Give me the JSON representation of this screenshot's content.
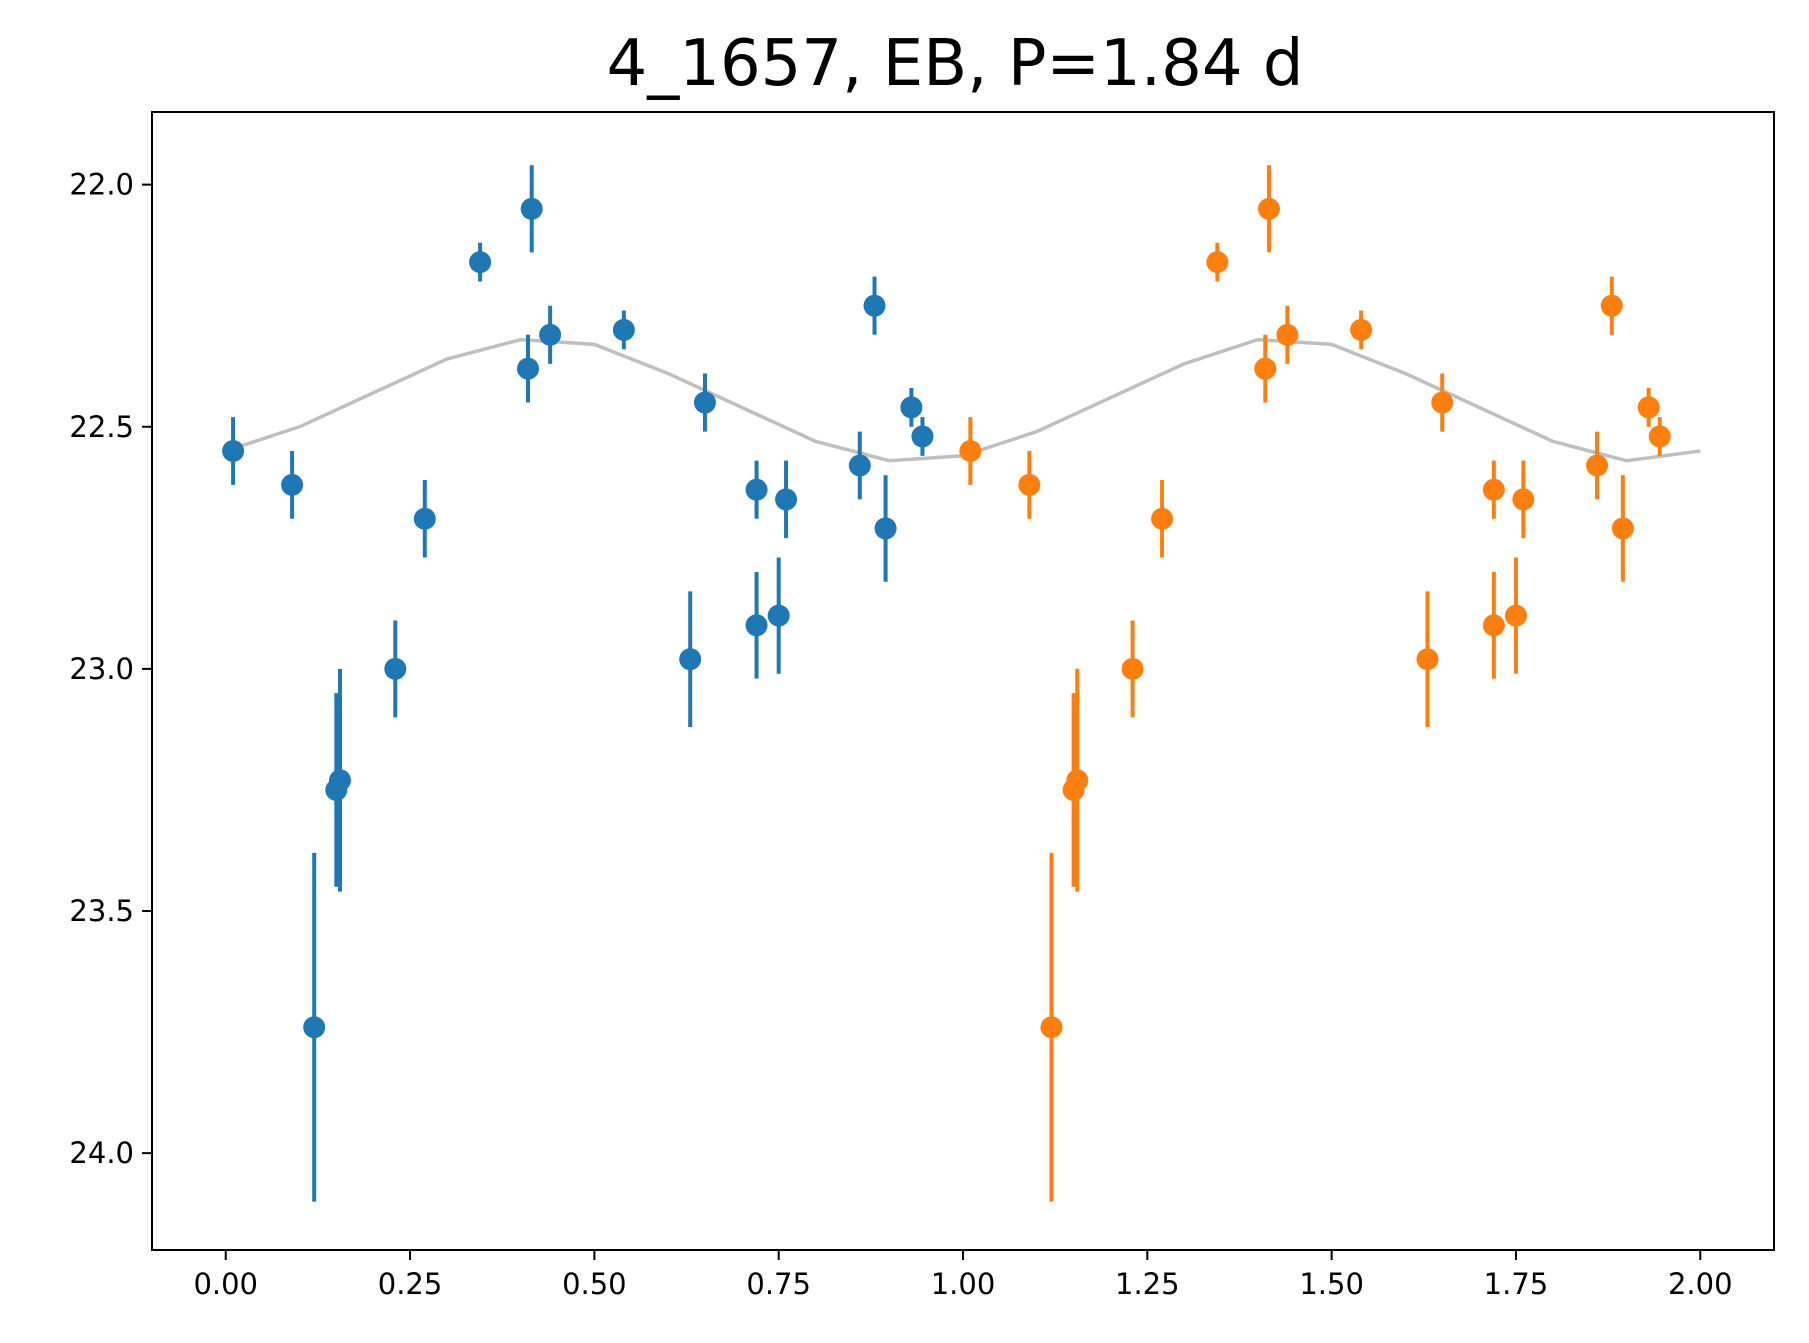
{
  "chart_data": {
    "type": "scatter",
    "title": "4_1657, EB, P=1.84 d",
    "xlabel": "",
    "ylabel": "",
    "xlim": [
      -0.1,
      2.1
    ],
    "ylim": [
      24.2,
      21.85
    ],
    "y_inverted": true,
    "grid": false,
    "xticks": [
      "0.00",
      "0.25",
      "0.50",
      "0.75",
      "1.00",
      "1.25",
      "1.50",
      "1.75",
      "2.00"
    ],
    "yticks": [
      "22.0",
      "22.5",
      "23.0",
      "23.5",
      "24.0"
    ],
    "colors": {
      "phase1": "#1f77b4",
      "phase2": "#ff7f0e",
      "model": "#bfbfbf",
      "axes": "#000000"
    },
    "series": [
      {
        "points": [
          {
            "x": 0.01,
            "y": 22.55,
            "err": 0.07
          },
          {
            "x": 0.09,
            "y": 22.62,
            "err": 0.07
          },
          {
            "x": 0.12,
            "y": 23.74,
            "err": 0.36
          },
          {
            "x": 0.15,
            "y": 23.25,
            "err": 0.2
          },
          {
            "x": 0.155,
            "y": 23.23,
            "err": 0.23
          },
          {
            "x": 0.23,
            "y": 23.0,
            "err": 0.1
          },
          {
            "x": 0.27,
            "y": 22.69,
            "err": 0.08
          },
          {
            "x": 0.345,
            "y": 22.16,
            "err": 0.04
          },
          {
            "x": 0.41,
            "y": 22.38,
            "err": 0.07
          },
          {
            "x": 0.415,
            "y": 22.05,
            "err": 0.09
          },
          {
            "x": 0.44,
            "y": 22.31,
            "err": 0.06
          },
          {
            "x": 0.54,
            "y": 22.3,
            "err": 0.04
          },
          {
            "x": 0.63,
            "y": 22.98,
            "err": 0.14
          },
          {
            "x": 0.65,
            "y": 22.45,
            "err": 0.06
          },
          {
            "x": 0.72,
            "y": 22.91,
            "err": 0.11
          },
          {
            "x": 0.72,
            "y": 22.63,
            "err": 0.06
          },
          {
            "x": 0.75,
            "y": 22.89,
            "err": 0.12
          },
          {
            "x": 0.76,
            "y": 22.65,
            "err": 0.08
          },
          {
            "x": 0.86,
            "y": 22.58,
            "err": 0.07
          },
          {
            "x": 0.88,
            "y": 22.25,
            "err": 0.06
          },
          {
            "x": 0.895,
            "y": 22.71,
            "err": 0.11
          },
          {
            "x": 0.93,
            "y": 22.46,
            "err": 0.04
          },
          {
            "x": 0.945,
            "y": 22.52,
            "err": 0.04
          }
        ]
      },
      {
        "points": [
          {
            "x": 1.01,
            "y": 22.55,
            "err": 0.07
          },
          {
            "x": 1.09,
            "y": 22.62,
            "err": 0.07
          },
          {
            "x": 1.12,
            "y": 23.74,
            "err": 0.36
          },
          {
            "x": 1.15,
            "y": 23.25,
            "err": 0.2
          },
          {
            "x": 1.155,
            "y": 23.23,
            "err": 0.23
          },
          {
            "x": 1.23,
            "y": 23.0,
            "err": 0.1
          },
          {
            "x": 1.27,
            "y": 22.69,
            "err": 0.08
          },
          {
            "x": 1.345,
            "y": 22.16,
            "err": 0.04
          },
          {
            "x": 1.41,
            "y": 22.38,
            "err": 0.07
          },
          {
            "x": 1.415,
            "y": 22.05,
            "err": 0.09
          },
          {
            "x": 1.44,
            "y": 22.31,
            "err": 0.06
          },
          {
            "x": 1.54,
            "y": 22.3,
            "err": 0.04
          },
          {
            "x": 1.63,
            "y": 22.98,
            "err": 0.14
          },
          {
            "x": 1.65,
            "y": 22.45,
            "err": 0.06
          },
          {
            "x": 1.72,
            "y": 22.91,
            "err": 0.11
          },
          {
            "x": 1.72,
            "y": 22.63,
            "err": 0.06
          },
          {
            "x": 1.75,
            "y": 22.89,
            "err": 0.12
          },
          {
            "x": 1.76,
            "y": 22.65,
            "err": 0.08
          },
          {
            "x": 1.86,
            "y": 22.58,
            "err": 0.07
          },
          {
            "x": 1.88,
            "y": 22.25,
            "err": 0.06
          },
          {
            "x": 1.895,
            "y": 22.71,
            "err": 0.11
          },
          {
            "x": 1.93,
            "y": 22.46,
            "err": 0.04
          },
          {
            "x": 1.945,
            "y": 22.52,
            "err": 0.04
          }
        ]
      }
    ],
    "model_curve": {
      "x": [
        0.0,
        0.1,
        0.2,
        0.3,
        0.4,
        0.5,
        0.6,
        0.7,
        0.8,
        0.9,
        1.0,
        1.1,
        1.2,
        1.3,
        1.4,
        1.5,
        1.6,
        1.7,
        1.8,
        1.9,
        2.0
      ],
      "y": [
        22.55,
        22.5,
        22.43,
        22.36,
        22.32,
        22.33,
        22.39,
        22.46,
        22.53,
        22.57,
        22.56,
        22.51,
        22.44,
        22.37,
        22.32,
        22.33,
        22.39,
        22.46,
        22.53,
        22.57,
        22.55
      ]
    }
  }
}
